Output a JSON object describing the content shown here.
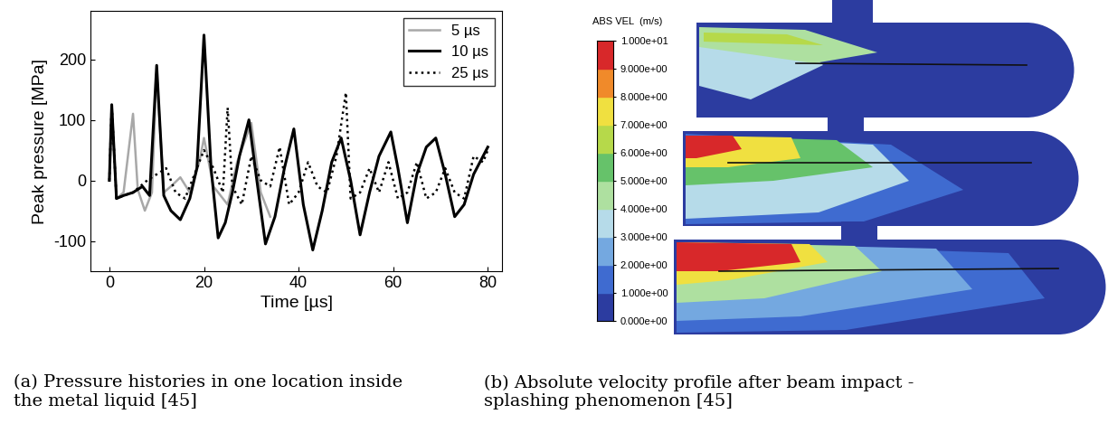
{
  "chart_data": {
    "type": "line",
    "x_label": "Time [µs]",
    "y_label": "Peak pressure [MPa]",
    "xlim": [
      -4,
      83
    ],
    "xticks": [
      0,
      20,
      40,
      60,
      80
    ],
    "ylim": [
      -150,
      280
    ],
    "yticks": [
      -100,
      0,
      100,
      200
    ],
    "legend": "upper right",
    "grid": false,
    "series": [
      {
        "name": "5 µs",
        "color": "#a8a8a8",
        "line_style": "solid",
        "x": [
          0,
          0.5,
          1.5,
          3,
          5,
          6,
          7.5,
          9,
          10,
          11.5,
          13,
          15,
          17,
          19,
          20,
          22,
          25,
          27,
          30,
          32,
          34
        ],
        "values": [
          0,
          125,
          -30,
          -20,
          110,
          -15,
          -50,
          -20,
          180,
          -20,
          -10,
          5,
          -20,
          30,
          70,
          -10,
          -40,
          30,
          95,
          -20,
          -60
        ]
      },
      {
        "name": "10 µs",
        "color": "#000000",
        "line_style": "solid",
        "x": [
          0,
          0.5,
          1.5,
          3,
          5,
          7,
          8.5,
          10,
          11.5,
          13,
          15,
          17,
          18.5,
          20,
          21.5,
          23,
          24.5,
          26,
          27.5,
          29.5,
          31,
          33,
          35,
          37,
          39,
          41,
          43,
          45,
          47,
          49,
          51,
          53,
          55,
          57,
          59.5,
          61,
          63,
          65,
          67,
          69,
          71,
          73,
          75,
          77,
          80
        ],
        "values": [
          0,
          125,
          -30,
          -25,
          -20,
          -10,
          -25,
          190,
          -25,
          -50,
          -65,
          -30,
          20,
          240,
          20,
          -95,
          -70,
          -20,
          40,
          100,
          10,
          -105,
          -60,
          20,
          85,
          -40,
          -115,
          -50,
          30,
          70,
          0,
          -90,
          -20,
          40,
          80,
          20,
          -70,
          10,
          55,
          70,
          10,
          -60,
          -40,
          10,
          55
        ]
      },
      {
        "name": "25 µs",
        "color": "#000000",
        "line_style": "dotted",
        "x": [
          0,
          0.5,
          1.5,
          3,
          5,
          8,
          10,
          12,
          14,
          16,
          18,
          20,
          22,
          24,
          25,
          26,
          28,
          30,
          32,
          34,
          36,
          38,
          40,
          42,
          44,
          46,
          48,
          50,
          51,
          53,
          55,
          57,
          59,
          61,
          63,
          65,
          67,
          69,
          71,
          73,
          75,
          77,
          79,
          80
        ],
        "values": [
          0,
          125,
          -30,
          -25,
          -20,
          0,
          10,
          20,
          -20,
          -30,
          10,
          50,
          20,
          -20,
          120,
          -10,
          -40,
          40,
          0,
          -10,
          55,
          -40,
          -20,
          30,
          -10,
          -20,
          40,
          145,
          -30,
          -20,
          20,
          -20,
          30,
          -30,
          -20,
          30,
          -30,
          -20,
          20,
          -20,
          -30,
          40,
          30,
          50
        ]
      }
    ]
  },
  "contour_panel": {
    "colorbar": {
      "title": "ABS VEL  (m/s)",
      "range": [
        0,
        10
      ],
      "ticks": [
        {
          "value": 0,
          "label": "0.000e+00"
        },
        {
          "value": 1,
          "label": "1.000e+00"
        },
        {
          "value": 2,
          "label": "2.000e+00"
        },
        {
          "value": 3,
          "label": "3.000e+00"
        },
        {
          "value": 4,
          "label": "4.000e+00"
        },
        {
          "value": 5,
          "label": "5.000e+00"
        },
        {
          "value": 6,
          "label": "6.000e+00"
        },
        {
          "value": 7,
          "label": "7.000e+00"
        },
        {
          "value": 8,
          "label": "8.000e+00"
        },
        {
          "value": 9,
          "label": "9.000e+00"
        },
        {
          "value": 10,
          "label": "1.000e+01"
        }
      ],
      "colors": [
        "#2c3ca0",
        "#3f6bd0",
        "#74a8e0",
        "#b6dbe9",
        "#aee0a0",
        "#66c26a",
        "#b6d94a",
        "#f0e040",
        "#f08a2a",
        "#d8282a"
      ]
    }
  },
  "captions": [
    "(a) Pressure histories in one location inside\nthe metal liquid [45]",
    "(b) Absolute velocity profile after beam impact -\nsplashing phenomenon [45]"
  ]
}
